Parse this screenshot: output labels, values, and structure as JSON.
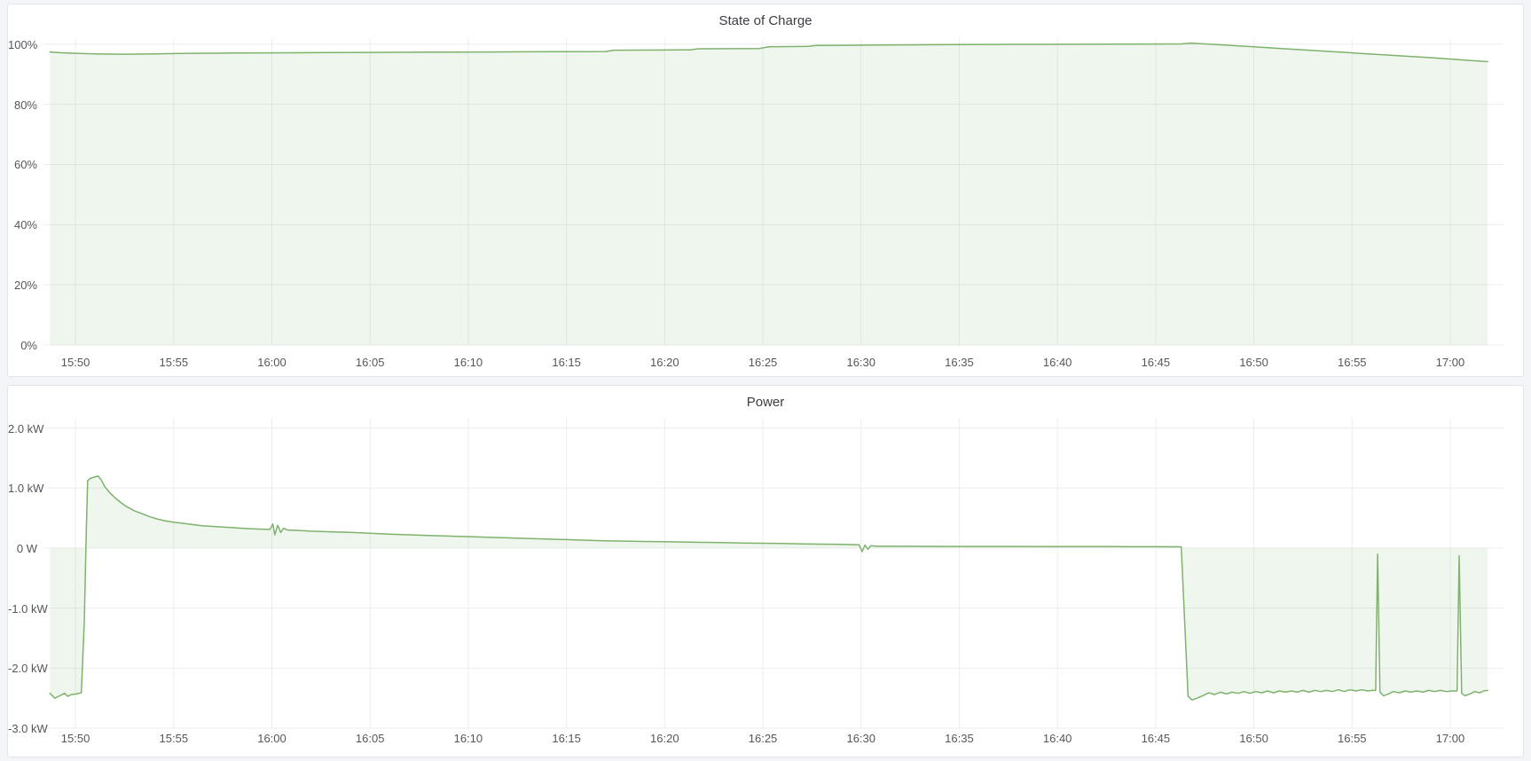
{
  "page": {
    "background": "#f4f5f9",
    "panel_background": "#ffffff",
    "grid_color": "#ecedf0",
    "tick_color": "#53575c",
    "title_color": "#3a3d42"
  },
  "chart_data": [
    {
      "id": "state-of-charge",
      "type": "area",
      "title": "State of Charge",
      "legend": "none",
      "grid": true,
      "baseline": 0,
      "x_axis": {
        "note": "t = minutes after 15:48",
        "min": 0.37,
        "max": 74.71,
        "ticks": [
          {
            "t": 2,
            "label": "15:50"
          },
          {
            "t": 7,
            "label": "15:55"
          },
          {
            "t": 12,
            "label": "16:00"
          },
          {
            "t": 17,
            "label": "16:05"
          },
          {
            "t": 22,
            "label": "16:10"
          },
          {
            "t": 27,
            "label": "16:15"
          },
          {
            "t": 32,
            "label": "16:20"
          },
          {
            "t": 37,
            "label": "16:25"
          },
          {
            "t": 42,
            "label": "16:30"
          },
          {
            "t": 47,
            "label": "16:35"
          },
          {
            "t": 52,
            "label": "16:40"
          },
          {
            "t": 57,
            "label": "16:45"
          },
          {
            "t": 62,
            "label": "16:50"
          },
          {
            "t": 67,
            "label": "16:55"
          },
          {
            "t": 72,
            "label": "17:00"
          }
        ]
      },
      "y_axis": {
        "min": 0,
        "max": 102,
        "ticks": [
          {
            "v": 0,
            "label": "0%"
          },
          {
            "v": 20,
            "label": "20%"
          },
          {
            "v": 40,
            "label": "40%"
          },
          {
            "v": 60,
            "label": "60%"
          },
          {
            "v": 80,
            "label": "80%"
          },
          {
            "v": 100,
            "label": "100%"
          }
        ]
      },
      "series": [
        {
          "name": "State of Charge",
          "color": "#7eb26d",
          "fill": "rgba(126,178,109,0.12)",
          "points": [
            [
              0.7,
              97.4
            ],
            [
              1.3,
              97.15
            ],
            [
              2,
              96.95
            ],
            [
              2.8,
              96.8
            ],
            [
              3.6,
              96.7
            ],
            [
              4.4,
              96.65
            ],
            [
              5.2,
              96.7
            ],
            [
              6,
              96.78
            ],
            [
              7,
              96.88
            ],
            [
              8,
              96.95
            ],
            [
              9,
              97.0
            ],
            [
              10,
              97.05
            ],
            [
              11.5,
              97.1
            ],
            [
              13,
              97.15
            ],
            [
              15,
              97.2
            ],
            [
              17,
              97.25
            ],
            [
              19,
              97.3
            ],
            [
              21,
              97.35
            ],
            [
              23,
              97.4
            ],
            [
              25,
              97.45
            ],
            [
              27,
              97.5
            ],
            [
              29,
              97.55
            ],
            [
              29.4,
              98.0
            ],
            [
              30.5,
              98.02
            ],
            [
              32,
              98.06
            ],
            [
              33.3,
              98.1
            ],
            [
              33.7,
              98.45
            ],
            [
              35,
              98.5
            ],
            [
              36.8,
              98.55
            ],
            [
              37.3,
              99.1
            ],
            [
              38.5,
              99.2
            ],
            [
              39.3,
              99.3
            ],
            [
              39.7,
              99.55
            ],
            [
              41,
              99.6
            ],
            [
              43,
              99.7
            ],
            [
              45,
              99.78
            ],
            [
              47,
              99.85
            ],
            [
              49,
              99.9
            ],
            [
              51,
              99.95
            ],
            [
              53,
              99.98
            ],
            [
              55,
              100.0
            ],
            [
              57,
              100.05
            ],
            [
              58.3,
              100.08
            ],
            [
              58.8,
              100.35
            ],
            [
              59.4,
              100.1
            ],
            [
              60.5,
              99.7
            ],
            [
              62,
              99.1
            ],
            [
              63.5,
              98.5
            ],
            [
              65,
              97.9
            ],
            [
              66.5,
              97.3
            ],
            [
              68,
              96.7
            ],
            [
              69.5,
              96.1
            ],
            [
              71,
              95.5
            ],
            [
              72.5,
              94.8
            ],
            [
              73.9,
              94.2
            ]
          ]
        }
      ]
    },
    {
      "id": "power",
      "type": "area",
      "title": "Power",
      "legend": "none",
      "grid": true,
      "baseline": 0,
      "x_axis": {
        "note": "t = minutes after 15:48",
        "min": 0.37,
        "max": 74.71,
        "ticks": [
          {
            "t": 2,
            "label": "15:50"
          },
          {
            "t": 7,
            "label": "15:55"
          },
          {
            "t": 12,
            "label": "16:00"
          },
          {
            "t": 17,
            "label": "16:05"
          },
          {
            "t": 22,
            "label": "16:10"
          },
          {
            "t": 27,
            "label": "16:15"
          },
          {
            "t": 32,
            "label": "16:20"
          },
          {
            "t": 37,
            "label": "16:25"
          },
          {
            "t": 42,
            "label": "16:30"
          },
          {
            "t": 47,
            "label": "16:35"
          },
          {
            "t": 52,
            "label": "16:40"
          },
          {
            "t": 57,
            "label": "16:45"
          },
          {
            "t": 62,
            "label": "16:50"
          },
          {
            "t": 67,
            "label": "16:55"
          },
          {
            "t": 72,
            "label": "17:00"
          }
        ]
      },
      "y_axis": {
        "min": -3.0,
        "max": 2.17,
        "ticks": [
          {
            "v": -3.0,
            "label": "-3.0 kW"
          },
          {
            "v": -2.0,
            "label": "-2.0 kW"
          },
          {
            "v": -1.0,
            "label": "-1.0 kW"
          },
          {
            "v": 0,
            "label": "0 W"
          },
          {
            "v": 1.0,
            "label": "1.0 kW"
          },
          {
            "v": 2.0,
            "label": "2.0 kW"
          }
        ]
      },
      "series": [
        {
          "name": "Power",
          "color": "#7eb26d",
          "fill": "rgba(126,178,109,0.12)",
          "points": [
            [
              0.7,
              -2.42
            ],
            [
              0.95,
              -2.5
            ],
            [
              1.2,
              -2.46
            ],
            [
              1.45,
              -2.42
            ],
            [
              1.6,
              -2.47
            ],
            [
              1.8,
              -2.44
            ],
            [
              2.05,
              -2.43
            ],
            [
              2.3,
              -2.41
            ],
            [
              2.45,
              -1.2
            ],
            [
              2.55,
              0.3
            ],
            [
              2.62,
              1.12
            ],
            [
              2.75,
              1.16
            ],
            [
              2.95,
              1.18
            ],
            [
              3.15,
              1.2
            ],
            [
              3.3,
              1.14
            ],
            [
              3.5,
              1.02
            ],
            [
              3.75,
              0.92
            ],
            [
              4,
              0.84
            ],
            [
              4.3,
              0.76
            ],
            [
              4.6,
              0.69
            ],
            [
              5,
              0.62
            ],
            [
              5.4,
              0.57
            ],
            [
              5.8,
              0.52
            ],
            [
              6.2,
              0.48
            ],
            [
              6.6,
              0.45
            ],
            [
              7,
              0.43
            ],
            [
              7.5,
              0.41
            ],
            [
              8,
              0.39
            ],
            [
              8.5,
              0.37
            ],
            [
              9,
              0.36
            ],
            [
              9.5,
              0.35
            ],
            [
              10,
              0.34
            ],
            [
              10.5,
              0.33
            ],
            [
              11,
              0.32
            ],
            [
              11.5,
              0.315
            ],
            [
              11.9,
              0.31
            ],
            [
              12.05,
              0.4
            ],
            [
              12.15,
              0.22
            ],
            [
              12.3,
              0.38
            ],
            [
              12.45,
              0.26
            ],
            [
              12.6,
              0.33
            ],
            [
              12.8,
              0.3
            ],
            [
              13.2,
              0.295
            ],
            [
              14,
              0.28
            ],
            [
              15,
              0.27
            ],
            [
              16,
              0.26
            ],
            [
              17,
              0.245
            ],
            [
              18,
              0.23
            ],
            [
              19,
              0.22
            ],
            [
              20,
              0.21
            ],
            [
              21,
              0.2
            ],
            [
              22,
              0.19
            ],
            [
              23,
              0.18
            ],
            [
              24,
              0.17
            ],
            [
              25,
              0.16
            ],
            [
              26,
              0.15
            ],
            [
              27,
              0.14
            ],
            [
              28,
              0.13
            ],
            [
              29,
              0.12
            ],
            [
              30,
              0.115
            ],
            [
              31,
              0.11
            ],
            [
              32,
              0.105
            ],
            [
              33,
              0.1
            ],
            [
              34,
              0.095
            ],
            [
              35,
              0.09
            ],
            [
              36,
              0.085
            ],
            [
              37,
              0.08
            ],
            [
              38,
              0.075
            ],
            [
              39,
              0.07
            ],
            [
              40,
              0.065
            ],
            [
              41,
              0.06
            ],
            [
              41.9,
              0.055
            ],
            [
              42.05,
              -0.06
            ],
            [
              42.2,
              0.05
            ],
            [
              42.35,
              -0.02
            ],
            [
              42.5,
              0.04
            ],
            [
              42.8,
              0.03
            ],
            [
              43.5,
              0.03
            ],
            [
              45,
              0.028
            ],
            [
              47,
              0.027
            ],
            [
              49,
              0.026
            ],
            [
              51,
              0.025
            ],
            [
              53,
              0.024
            ],
            [
              55,
              0.023
            ],
            [
              57,
              0.022
            ],
            [
              58.3,
              0.021
            ],
            [
              58.5,
              -1.4
            ],
            [
              58.65,
              -2.47
            ],
            [
              58.85,
              -2.53
            ],
            [
              59.1,
              -2.5
            ],
            [
              59.4,
              -2.46
            ],
            [
              59.7,
              -2.41
            ],
            [
              60,
              -2.44
            ],
            [
              60.3,
              -2.4
            ],
            [
              60.6,
              -2.43
            ],
            [
              60.9,
              -2.4
            ],
            [
              61.2,
              -2.42
            ],
            [
              61.5,
              -2.39
            ],
            [
              61.8,
              -2.42
            ],
            [
              62.1,
              -2.39
            ],
            [
              62.4,
              -2.41
            ],
            [
              62.7,
              -2.38
            ],
            [
              63,
              -2.41
            ],
            [
              63.3,
              -2.38
            ],
            [
              63.6,
              -2.4
            ],
            [
              63.9,
              -2.38
            ],
            [
              64.2,
              -2.4
            ],
            [
              64.5,
              -2.37
            ],
            [
              64.8,
              -2.4
            ],
            [
              65.1,
              -2.37
            ],
            [
              65.4,
              -2.39
            ],
            [
              65.7,
              -2.37
            ],
            [
              66,
              -2.39
            ],
            [
              66.3,
              -2.36
            ],
            [
              66.6,
              -2.39
            ],
            [
              66.9,
              -2.36
            ],
            [
              67.2,
              -2.38
            ],
            [
              67.5,
              -2.36
            ],
            [
              67.8,
              -2.38
            ],
            [
              68.05,
              -2.37
            ],
            [
              68.2,
              -2.37
            ],
            [
              68.3,
              -0.1
            ],
            [
              68.42,
              -2.4
            ],
            [
              68.6,
              -2.46
            ],
            [
              68.85,
              -2.43
            ],
            [
              69.1,
              -2.39
            ],
            [
              69.4,
              -2.41
            ],
            [
              69.7,
              -2.38
            ],
            [
              70,
              -2.4
            ],
            [
              70.3,
              -2.38
            ],
            [
              70.6,
              -2.4
            ],
            [
              70.9,
              -2.37
            ],
            [
              71.2,
              -2.39
            ],
            [
              71.5,
              -2.37
            ],
            [
              71.8,
              -2.39
            ],
            [
              72.1,
              -2.38
            ],
            [
              72.35,
              -2.38
            ],
            [
              72.45,
              -0.13
            ],
            [
              72.58,
              -2.42
            ],
            [
              72.75,
              -2.46
            ],
            [
              73,
              -2.43
            ],
            [
              73.25,
              -2.39
            ],
            [
              73.5,
              -2.41
            ],
            [
              73.7,
              -2.38
            ],
            [
              73.9,
              -2.37
            ]
          ]
        }
      ]
    }
  ]
}
